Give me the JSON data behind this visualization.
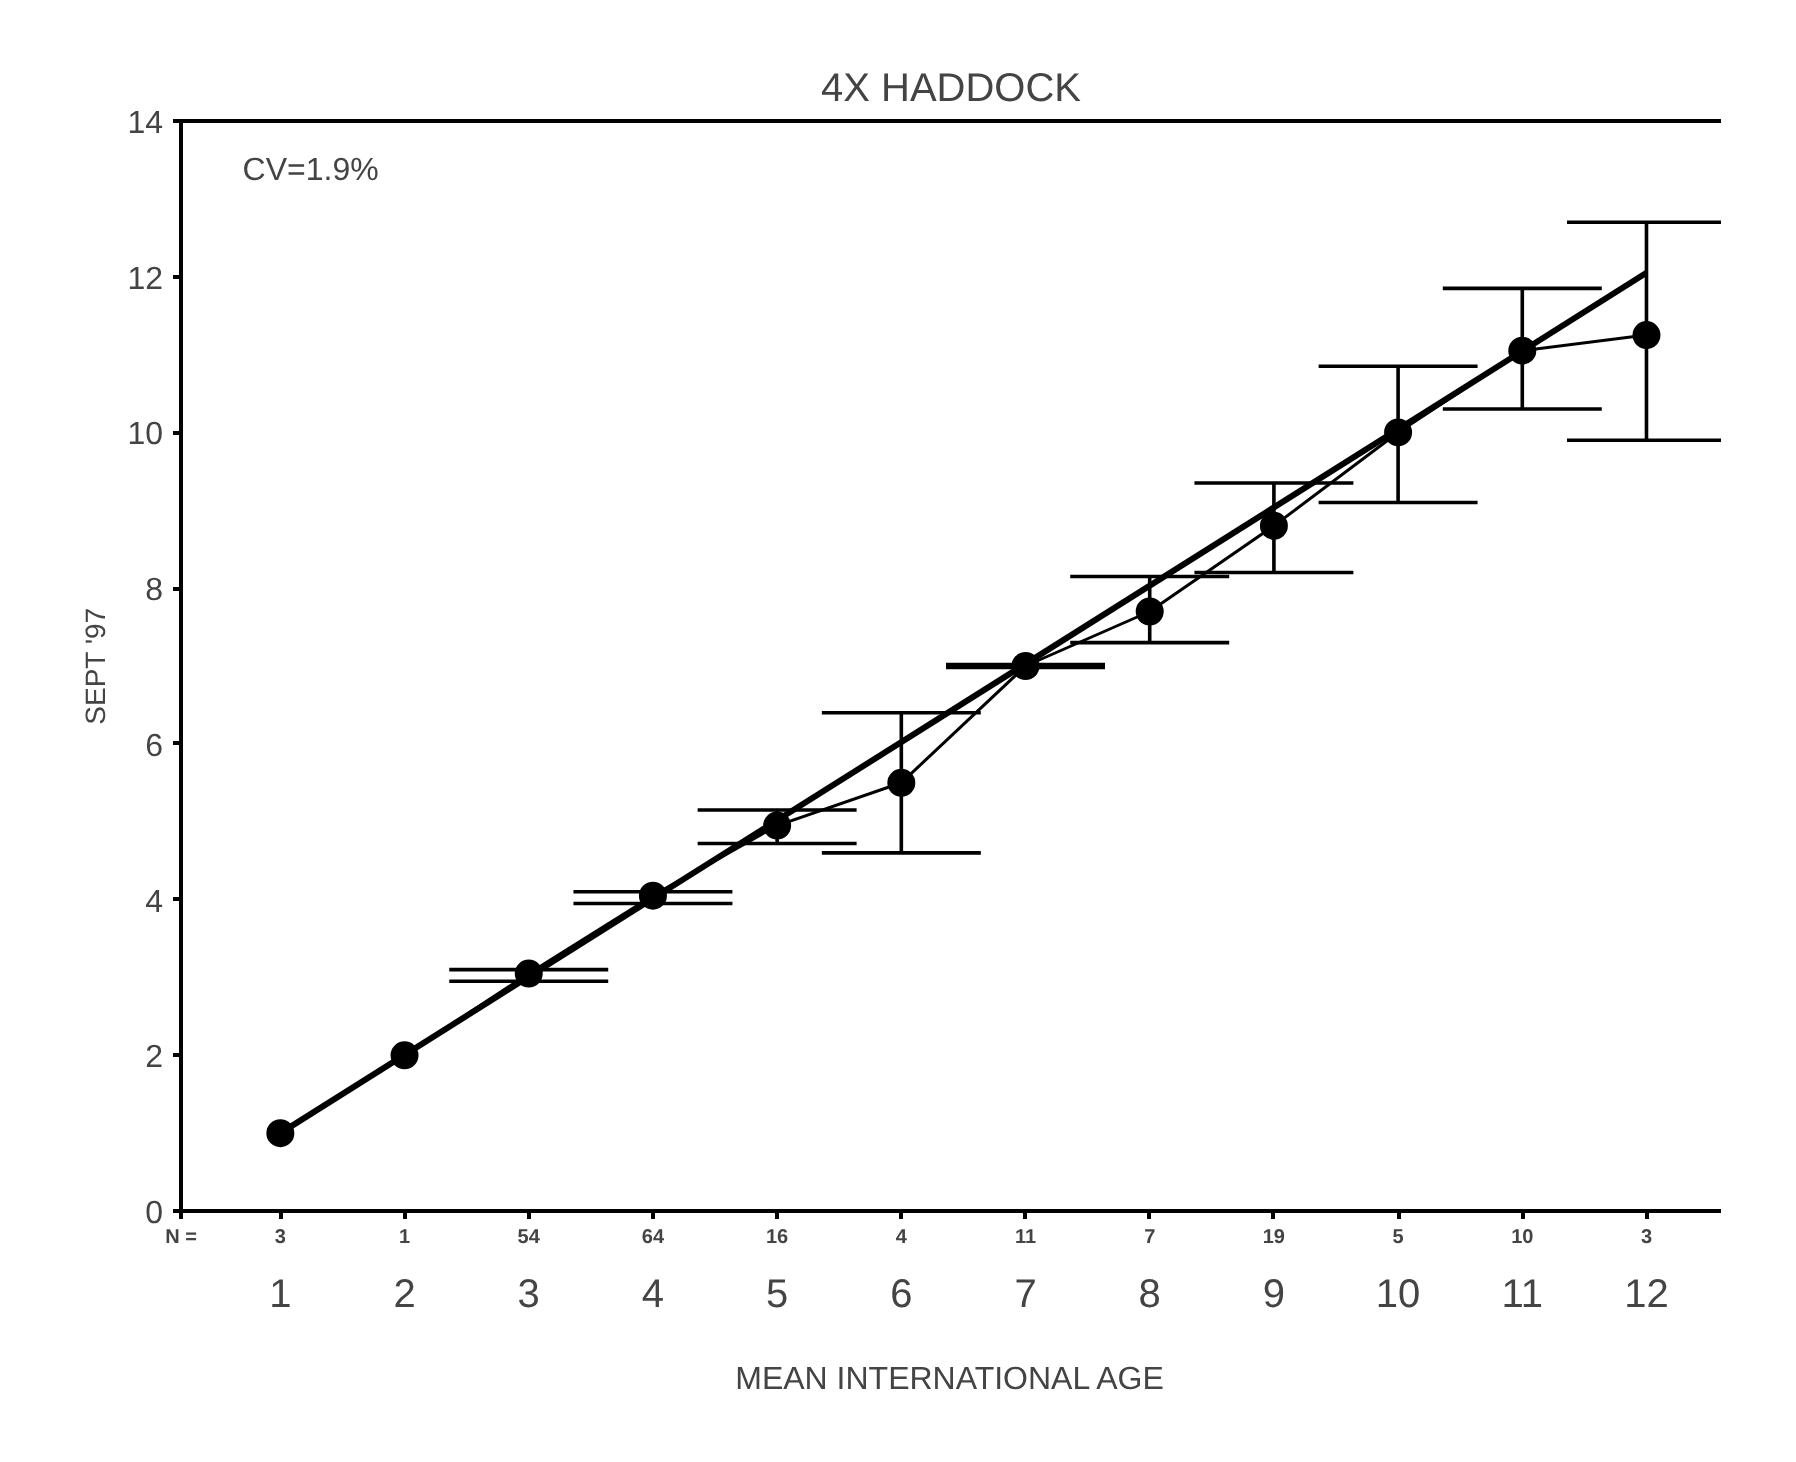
{
  "chart_data": {
    "type": "line",
    "title": "4X HADDOCK",
    "xlabel": "MEAN INTERNATIONAL AGE",
    "ylabel": "SEPT '97",
    "x": [
      1,
      2,
      3,
      4,
      5,
      6,
      7,
      8,
      9,
      10,
      11,
      12
    ],
    "series": [
      {
        "color": "#000000",
        "values": [
          1.0,
          2.0,
          3.05,
          4.05,
          4.95,
          5.5,
          7.0,
          7.7,
          8.8,
          10.0,
          11.05,
          11.25
        ],
        "errors": [
          null,
          null,
          [
            2.95,
            3.1
          ],
          [
            3.95,
            4.1
          ],
          [
            4.72,
            5.15
          ],
          [
            4.6,
            6.4
          ],
          [
            6.98,
            7.02
          ],
          [
            7.3,
            8.15
          ],
          [
            8.2,
            9.35
          ],
          [
            9.1,
            10.85
          ],
          [
            10.3,
            11.85
          ],
          [
            9.9,
            12.7
          ]
        ],
        "marker": "circle"
      },
      {
        "type": "line",
        "color": "#000000",
        "x": [
          1,
          12
        ],
        "values": [
          1.0,
          12.05
        ],
        "marker": "none"
      }
    ],
    "xlim": [
      0.2,
      12.6
    ],
    "xticks": [
      1,
      2,
      3,
      4,
      5,
      6,
      7,
      8,
      9,
      10,
      11,
      12
    ],
    "ylim": [
      0,
      14
    ],
    "yticks": [
      0,
      2,
      4,
      6,
      8,
      10,
      12,
      14
    ],
    "grid": false,
    "line_style": "solid",
    "annotations": [
      "CV=1.9%",
      "N =",
      "3",
      "1",
      "54",
      "64",
      "16",
      "4",
      "11",
      "7",
      "19",
      "5",
      "10",
      "3"
    ]
  }
}
